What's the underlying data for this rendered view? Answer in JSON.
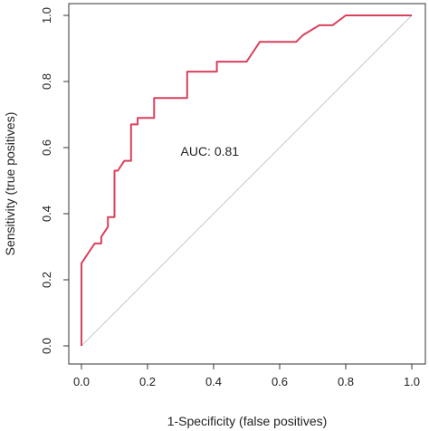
{
  "chart_data": {
    "type": "line",
    "xlabel": "1-Specificity (false positives)",
    "ylabel": "Sensitivity (true positives)",
    "xlim": [
      0,
      1
    ],
    "ylim": [
      0,
      1
    ],
    "x_ticks": [
      "0.0",
      "0.2",
      "0.4",
      "0.6",
      "0.8",
      "1.0"
    ],
    "y_ticks": [
      "0.0",
      "0.2",
      "0.4",
      "0.6",
      "0.8",
      "1.0"
    ],
    "grid": false,
    "legend": "none",
    "annotation": "AUC: 0.81",
    "series": [
      {
        "color": "#d9415c",
        "x": [
          0,
          0,
          0.02,
          0.04,
          0.04,
          0.06,
          0.06,
          0.08,
          0.08,
          0.1,
          0.1,
          0.11,
          0.13,
          0.15,
          0.15,
          0.17,
          0.17,
          0.19,
          0.22,
          0.22,
          0.32,
          0.32,
          0.41,
          0.41,
          0.5,
          0.54,
          0.54,
          0.65,
          0.67,
          0.72,
          0.76,
          0.76,
          0.8,
          0.8,
          1
        ],
        "y": [
          0,
          0.25,
          0.28,
          0.31,
          0.31,
          0.31,
          0.33,
          0.36,
          0.39,
          0.39,
          0.53,
          0.53,
          0.56,
          0.56,
          0.67,
          0.67,
          0.69,
          0.69,
          0.69,
          0.75,
          0.75,
          0.83,
          0.83,
          0.86,
          0.86,
          0.92,
          0.92,
          0.92,
          0.94,
          0.97,
          0.97,
          0.97,
          1.0,
          1.0,
          1.0
        ]
      }
    ],
    "reference_line": {
      "color": "#c8c8c8",
      "x": [
        0,
        1
      ],
      "y": [
        0,
        1
      ]
    },
    "axis_color": "#333333"
  }
}
